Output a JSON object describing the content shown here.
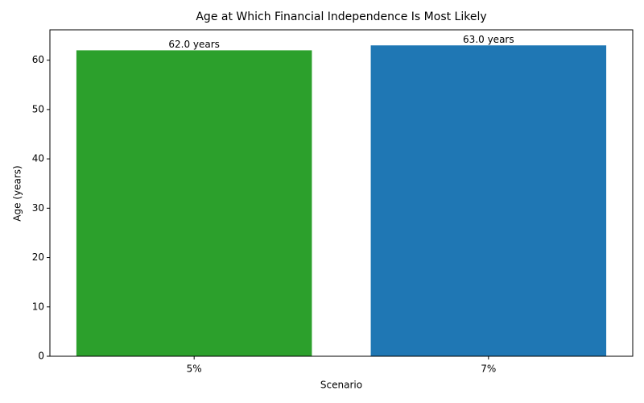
{
  "chart_data": {
    "type": "bar",
    "title": "Age at Which Financial Independence Is Most Likely",
    "x_label": "Scenario",
    "y_label": "Age (years)",
    "categories": [
      "5%",
      "7%"
    ],
    "values": [
      62,
      63
    ],
    "value_labels": [
      "62.0 years",
      "63.0 years"
    ],
    "colors": [
      "#2ca02c",
      "#1f77b4"
    ],
    "ylim": [
      0,
      66.15
    ],
    "yticks": [
      0,
      10,
      20,
      30,
      40,
      50,
      60
    ],
    "grid": false
  }
}
